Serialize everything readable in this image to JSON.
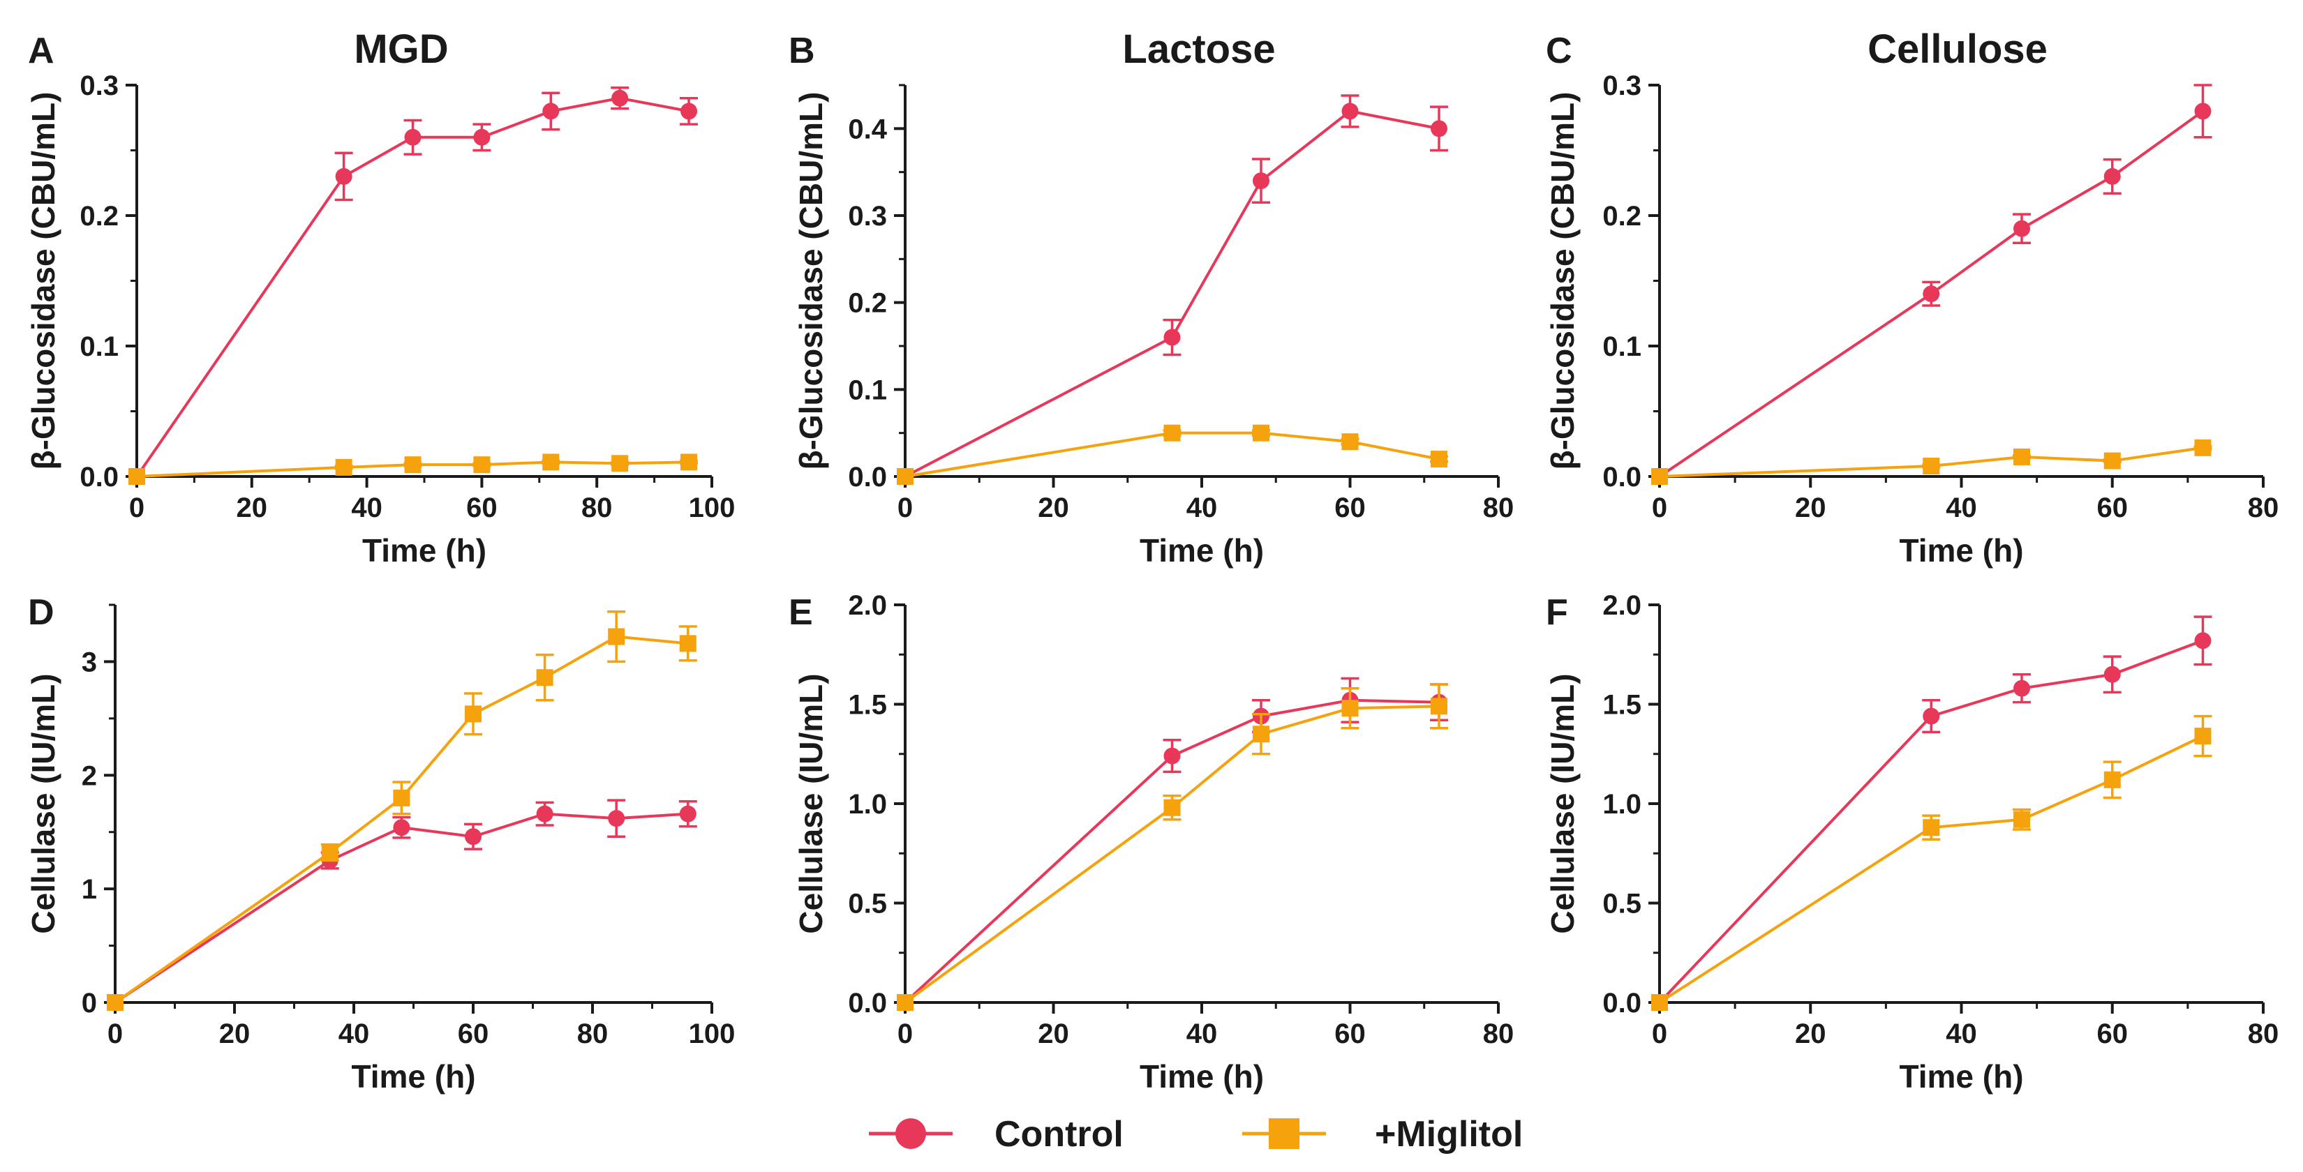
{
  "legend": {
    "entries": [
      {
        "name": "Control",
        "color": "#e8385a",
        "marker": "circle"
      },
      {
        "name": "+Miglitol",
        "color": "#f5a20d",
        "marker": "square"
      }
    ]
  },
  "chart_data": [
    {
      "letter": "A",
      "title": "MGD",
      "type": "line",
      "xlabel": "Time (h)",
      "ylabel": "β-Glucosidase (CBU/mL)",
      "xlim": [
        0,
        100
      ],
      "ylim": [
        0,
        0.3
      ],
      "xticks": [
        "0",
        "20",
        "40",
        "60",
        "80",
        "100"
      ],
      "yticks": [
        "0.0",
        "0.1",
        "0.2",
        "0.3"
      ],
      "series": [
        {
          "name": "Control",
          "color": "#e8385a",
          "marker": "circle",
          "x": [
            0,
            36,
            48,
            60,
            72,
            84,
            96
          ],
          "y": [
            0,
            0.23,
            0.26,
            0.26,
            0.28,
            0.29,
            0.28
          ],
          "err": [
            0,
            0.018,
            0.013,
            0.01,
            0.014,
            0.008,
            0.01
          ]
        },
        {
          "name": "+Miglitol",
          "color": "#f5a20d",
          "marker": "square",
          "x": [
            0,
            36,
            48,
            60,
            72,
            84,
            96
          ],
          "y": [
            0,
            0.007,
            0.009,
            0.009,
            0.011,
            0.01,
            0.011
          ],
          "err": [
            0,
            0.001,
            0.001,
            0.001,
            0.001,
            0.001,
            0.001
          ]
        }
      ]
    },
    {
      "letter": "B",
      "title": "Lactose",
      "type": "line",
      "xlabel": "Time (h)",
      "ylabel": "β-Glucosidase (CBU/mL)",
      "xlim": [
        0,
        80
      ],
      "ylim": [
        0,
        0.45
      ],
      "xticks": [
        "0",
        "20",
        "40",
        "60",
        "80"
      ],
      "yticks": [
        "0.0",
        "0.1",
        "0.2",
        "0.3",
        "0.4"
      ],
      "series": [
        {
          "name": "Control",
          "color": "#e8385a",
          "marker": "circle",
          "x": [
            0,
            36,
            48,
            60,
            72
          ],
          "y": [
            0,
            0.16,
            0.34,
            0.42,
            0.4
          ],
          "err": [
            0,
            0.02,
            0.025,
            0.018,
            0.025
          ]
        },
        {
          "name": "+Miglitol",
          "color": "#f5a20d",
          "marker": "square",
          "x": [
            0,
            36,
            48,
            60,
            72
          ],
          "y": [
            0,
            0.05,
            0.05,
            0.04,
            0.02
          ],
          "err": [
            0,
            0.003,
            0.003,
            0.003,
            0.003
          ]
        }
      ]
    },
    {
      "letter": "C",
      "title": "Cellulose",
      "type": "line",
      "xlabel": "Time (h)",
      "ylabel": "β-Glucosidase (CBU/mL)",
      "xlim": [
        0,
        80
      ],
      "ylim": [
        0,
        0.3
      ],
      "xticks": [
        "0",
        "20",
        "40",
        "60",
        "80"
      ],
      "yticks": [
        "0.0",
        "0.1",
        "0.2",
        "0.3"
      ],
      "series": [
        {
          "name": "Control",
          "color": "#e8385a",
          "marker": "circle",
          "x": [
            0,
            36,
            48,
            60,
            72
          ],
          "y": [
            0,
            0.14,
            0.19,
            0.23,
            0.28
          ],
          "err": [
            0,
            0.009,
            0.011,
            0.013,
            0.02
          ]
        },
        {
          "name": "+Miglitol",
          "color": "#f5a20d",
          "marker": "square",
          "x": [
            0,
            36,
            48,
            60,
            72
          ],
          "y": [
            0,
            0.008,
            0.015,
            0.012,
            0.022
          ],
          "err": [
            0,
            0.001,
            0.001,
            0.001,
            0.001
          ]
        }
      ]
    },
    {
      "letter": "D",
      "title": "",
      "type": "line",
      "xlabel": "Time (h)",
      "ylabel": "Cellulase (IU/mL)",
      "xlim": [
        0,
        100
      ],
      "ylim": [
        0,
        3.5
      ],
      "xticks": [
        "0",
        "20",
        "40",
        "60",
        "80",
        "100"
      ],
      "yticks": [
        "0",
        "1",
        "2",
        "3"
      ],
      "series": [
        {
          "name": "Control",
          "color": "#e8385a",
          "marker": "circle",
          "x": [
            0,
            36,
            48,
            60,
            72,
            84,
            96
          ],
          "y": [
            0,
            1.25,
            1.54,
            1.46,
            1.66,
            1.62,
            1.66
          ],
          "err": [
            0,
            0.07,
            0.09,
            0.11,
            0.1,
            0.16,
            0.11
          ]
        },
        {
          "name": "+Miglitol",
          "color": "#f5a20d",
          "marker": "square",
          "x": [
            0,
            36,
            48,
            60,
            72,
            84,
            96
          ],
          "y": [
            0,
            1.32,
            1.8,
            2.54,
            2.86,
            3.22,
            3.16
          ],
          "err": [
            0,
            0.07,
            0.14,
            0.18,
            0.2,
            0.22,
            0.15
          ]
        }
      ]
    },
    {
      "letter": "E",
      "title": "",
      "type": "line",
      "xlabel": "Time (h)",
      "ylabel": "Cellulase (IU/mL)",
      "xlim": [
        0,
        80
      ],
      "ylim": [
        0,
        2.0
      ],
      "xticks": [
        "0",
        "20",
        "40",
        "60",
        "80"
      ],
      "yticks": [
        "0.0",
        "0.5",
        "1.0",
        "1.5",
        "2.0"
      ],
      "series": [
        {
          "name": "Control",
          "color": "#e8385a",
          "marker": "circle",
          "x": [
            0,
            36,
            48,
            60,
            72
          ],
          "y": [
            0,
            1.24,
            1.44,
            1.52,
            1.51
          ],
          "err": [
            0,
            0.08,
            0.08,
            0.11,
            0.09
          ]
        },
        {
          "name": "+Miglitol",
          "color": "#f5a20d",
          "marker": "square",
          "x": [
            0,
            36,
            48,
            60,
            72
          ],
          "y": [
            0,
            0.98,
            1.35,
            1.48,
            1.49
          ],
          "err": [
            0,
            0.06,
            0.1,
            0.1,
            0.11
          ]
        }
      ]
    },
    {
      "letter": "F",
      "title": "",
      "type": "line",
      "xlabel": "Time (h)",
      "ylabel": "Cellulase (IU/mL)",
      "xlim": [
        0,
        80
      ],
      "ylim": [
        0,
        2.0
      ],
      "xticks": [
        "0",
        "20",
        "40",
        "60",
        "80"
      ],
      "yticks": [
        "0.0",
        "0.5",
        "1.0",
        "1.5",
        "2.0"
      ],
      "series": [
        {
          "name": "Control",
          "color": "#e8385a",
          "marker": "circle",
          "x": [
            0,
            36,
            48,
            60,
            72
          ],
          "y": [
            0,
            1.44,
            1.58,
            1.65,
            1.82
          ],
          "err": [
            0,
            0.08,
            0.07,
            0.09,
            0.12
          ]
        },
        {
          "name": "+Miglitol",
          "color": "#f5a20d",
          "marker": "square",
          "x": [
            0,
            36,
            48,
            60,
            72
          ],
          "y": [
            0,
            0.88,
            0.92,
            1.12,
            1.34
          ],
          "err": [
            0,
            0.06,
            0.05,
            0.09,
            0.1
          ]
        }
      ]
    }
  ]
}
